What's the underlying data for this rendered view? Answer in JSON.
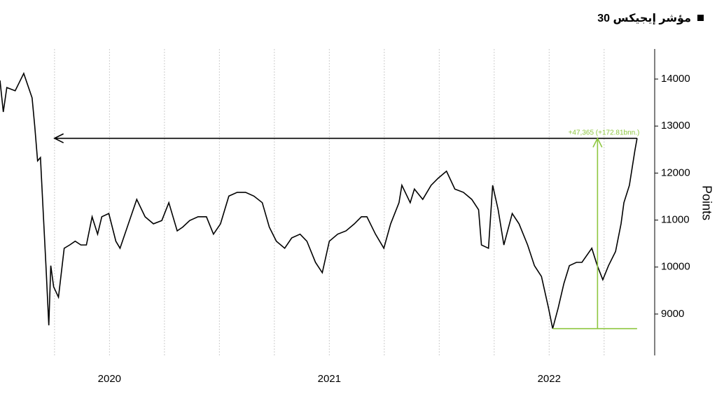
{
  "chart_data": {
    "type": "line",
    "series": [
      {
        "name": "مؤشر إيجيكس 30",
        "color": "#000000",
        "x": [
          2019.502,
          2019.517,
          2019.533,
          2019.571,
          2019.61,
          2019.648,
          2019.66,
          2019.673,
          2019.686,
          2019.698,
          2019.711,
          2019.724,
          2019.733,
          2019.746,
          2019.768,
          2019.794,
          2019.819,
          2019.844,
          2019.87,
          2019.895,
          2019.921,
          2019.946,
          2019.965,
          2019.997,
          2020.029,
          2020.048,
          2020.086,
          2020.124,
          2020.162,
          2020.2,
          2020.238,
          2020.27,
          2020.308,
          2020.333,
          2020.365,
          2020.403,
          2020.441,
          2020.473,
          2020.505,
          2020.543,
          2020.581,
          2020.619,
          2020.657,
          2020.695,
          2020.727,
          2020.759,
          2020.797,
          2020.829,
          2020.867,
          2020.898,
          2020.937,
          2020.968,
          2021.0,
          2021.038,
          2021.076,
          2021.114,
          2021.146,
          2021.171,
          2021.21,
          2021.248,
          2021.279,
          2021.317,
          2021.33,
          2021.368,
          2021.387,
          2021.425,
          2021.463,
          2021.495,
          2021.533,
          2021.571,
          2021.61,
          2021.648,
          2021.679,
          2021.692,
          2021.724,
          2021.743,
          2021.768,
          2021.794,
          2021.832,
          2021.863,
          2021.902,
          2021.933,
          2021.965,
          2021.997,
          2022.016,
          2022.041,
          2022.067,
          2022.092,
          2022.124,
          2022.149,
          2022.194,
          2022.219,
          2022.244,
          2022.27,
          2022.302,
          2022.327,
          2022.34,
          2022.365,
          2022.39,
          2022.4
        ],
        "values": [
          13970,
          13300,
          13820,
          13750,
          14120,
          13600,
          13000,
          12260,
          12330,
          11220,
          10030,
          8760,
          10030,
          9580,
          9360,
          10400,
          10470,
          10550,
          10470,
          10470,
          11070,
          10700,
          11070,
          11140,
          10550,
          10400,
          10920,
          11440,
          11070,
          10920,
          10990,
          11370,
          10770,
          10850,
          10990,
          11070,
          11070,
          10700,
          10920,
          11510,
          11590,
          11590,
          11510,
          11370,
          10850,
          10550,
          10400,
          10620,
          10700,
          10550,
          10100,
          9880,
          10550,
          10700,
          10770,
          10920,
          11070,
          11070,
          10700,
          10400,
          10920,
          11370,
          11740,
          11370,
          11660,
          11440,
          11740,
          11890,
          12040,
          11660,
          11590,
          11440,
          11220,
          10470,
          10400,
          11740,
          11220,
          10470,
          11140,
          10920,
          10470,
          10030,
          9800,
          9130,
          8690,
          9130,
          9650,
          10030,
          10100,
          10100,
          10400,
          10030,
          9730,
          10030,
          10330,
          10920,
          11370,
          11740,
          12480,
          12740
        ]
      }
    ],
    "y_label": "Points",
    "xlim": [
      2019.502,
      2022.48
    ],
    "ylim": [
      8120,
      14640
    ],
    "xticks": [
      2020,
      2021,
      2022
    ],
    "yticks": [
      9000,
      10000,
      11000,
      12000,
      13000,
      14000
    ],
    "xgrid": [
      2019.75,
      2020,
      2020.25,
      2020.5,
      2020.75,
      2021,
      2021.25,
      2021.5,
      2021.75,
      2022,
      2022.25
    ],
    "annotations": [
      {
        "type": "arrow",
        "x": [
          2022.4,
          2019.75
        ],
        "y": [
          12740,
          12740
        ],
        "color": "#000000"
      },
      {
        "type": "line",
        "x": [
          2022.016,
          2022.4
        ],
        "y": [
          8690,
          8690
        ],
        "color": "#8dc63f"
      },
      {
        "type": "arrow",
        "x": [
          2022.22,
          2022.22
        ],
        "y": [
          8690,
          12740
        ],
        "color": "#8dc63f",
        "text": "+47,365 (+172.81bnn.)"
      }
    ]
  }
}
